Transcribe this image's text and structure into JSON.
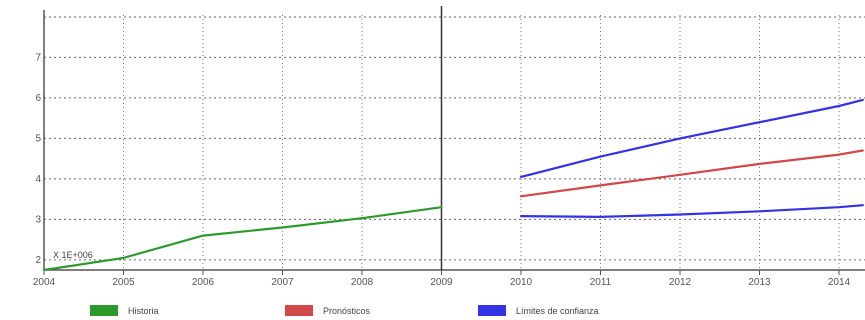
{
  "chart_data": {
    "type": "line",
    "x_ticks": [
      "2004",
      "2005",
      "2006",
      "2007",
      "2008",
      "2009",
      "2010",
      "2011",
      "2012",
      "2013",
      "2014"
    ],
    "y_ticks": [
      "2",
      "3",
      "4",
      "5",
      "6",
      "7"
    ],
    "xlim": [
      2004,
      2014.3
    ],
    "ylim": [
      1.75,
      8.1
    ],
    "scale_note": "X 1E+006",
    "grid": true,
    "divider_x": 2009,
    "legend_position": "bottom",
    "series": [
      {
        "name": "Historia",
        "color": "#2e9a2e",
        "x": [
          2004,
          2005,
          2006,
          2007,
          2008,
          2009
        ],
        "y": [
          1.75,
          2.05,
          2.6,
          2.8,
          3.03,
          3.3
        ]
      },
      {
        "name": "Pronósticos",
        "color": "#d04848",
        "x": [
          2010,
          2011,
          2012,
          2013,
          2014,
          2014.3
        ],
        "y": [
          3.57,
          3.84,
          4.1,
          4.37,
          4.6,
          4.7
        ]
      },
      {
        "name": "Límites de confianza",
        "color": "#3333e6",
        "x": [
          2010,
          2011,
          2012,
          2013,
          2014,
          2014.3
        ],
        "y": [
          4.05,
          4.55,
          5.0,
          5.4,
          5.8,
          5.95
        ]
      },
      {
        "name": "Límites de confianza",
        "color": "#3333e6",
        "x": [
          2010,
          2011,
          2012,
          2013,
          2014,
          2014.3
        ],
        "y": [
          3.08,
          3.06,
          3.12,
          3.2,
          3.3,
          3.35
        ]
      }
    ]
  },
  "legend": [
    {
      "label": "Historia",
      "color": "#2e9a2e"
    },
    {
      "label": "Pronósticos",
      "color": "#d04848"
    },
    {
      "label": "Límites de confianza",
      "color": "#3333e6"
    }
  ]
}
